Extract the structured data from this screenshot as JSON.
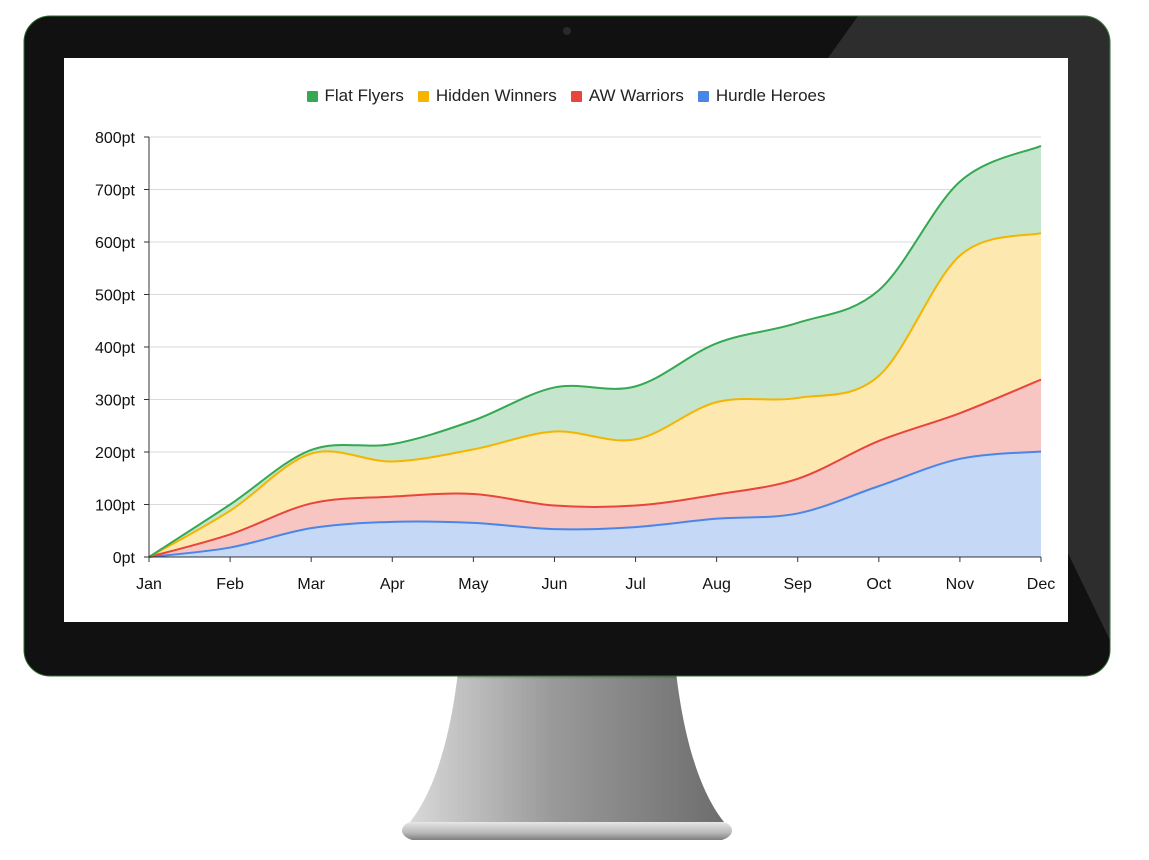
{
  "colors": {
    "bezel": "#111111",
    "screen": "#ffffff",
    "grid": "#d9d9d9",
    "axis": "#333333"
  },
  "chart_data": {
    "type": "area",
    "stacked": true,
    "title": "",
    "xlabel": "",
    "ylabel": "",
    "categories": [
      "Jan",
      "Feb",
      "Mar",
      "Apr",
      "May",
      "Jun",
      "Jul",
      "Aug",
      "Sep",
      "Oct",
      "Nov",
      "Dec"
    ],
    "ylim": [
      0,
      800
    ],
    "yticks": [
      "0pt",
      "100pt",
      "200pt",
      "300pt",
      "400pt",
      "500pt",
      "600pt",
      "700pt",
      "800pt"
    ],
    "legend_position": "top",
    "grid": true,
    "series": [
      {
        "name": "Hurdle Heroes",
        "color": "#4a86e8",
        "fill": "#c5d9f7",
        "values": [
          0,
          18,
          55,
          67,
          65,
          53,
          57,
          73,
          83,
          135,
          187,
          201
        ]
      },
      {
        "name": "AW Warriors",
        "color": "#e8453c",
        "fill": "#f7c6c3",
        "values": [
          0,
          25,
          47,
          48,
          55,
          45,
          41,
          46,
          66,
          86,
          87,
          137
        ]
      },
      {
        "name": "Hidden Winners",
        "color": "#f4b400",
        "fill": "#fde9b0",
        "values": [
          0,
          45,
          95,
          67,
          85,
          141,
          126,
          176,
          154,
          124,
          300,
          279
        ]
      },
      {
        "name": "Flat Flyers",
        "color": "#35a853",
        "fill": "#c5e6cc",
        "values": [
          0,
          12,
          7,
          33,
          55,
          84,
          101,
          112,
          143,
          163,
          141,
          166
        ]
      }
    ]
  },
  "legend": [
    {
      "label": "Flat Flyers",
      "color": "#35a853"
    },
    {
      "label": "Hidden Winners",
      "color": "#f4b400"
    },
    {
      "label": "AW Warriors",
      "color": "#e8453c"
    },
    {
      "label": "Hurdle Heroes",
      "color": "#4a86e8"
    }
  ]
}
